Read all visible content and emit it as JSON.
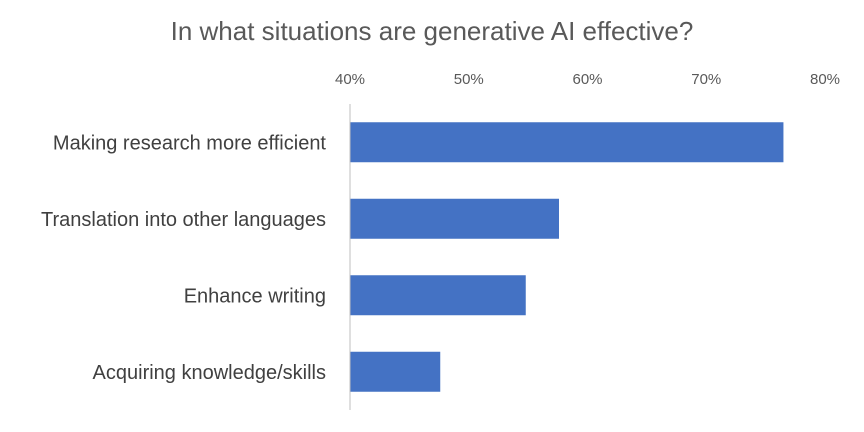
{
  "chart_data": {
    "type": "bar",
    "orientation": "horizontal",
    "title": "In what situations are generative AI effective?",
    "xlabel": "",
    "ylabel": "",
    "categories": [
      "Making research more efficient",
      "Translation into other languages",
      "Enhance writing",
      "Acquiring knowledge/skills"
    ],
    "values": [
      76.5,
      57.6,
      54.8,
      47.6
    ],
    "value_unit": "%",
    "xlim": [
      40,
      80
    ],
    "xticks": [
      40,
      50,
      60,
      70,
      80
    ],
    "xtick_labels": [
      "40%",
      "50%",
      "60%",
      "70%",
      "80%"
    ],
    "axis_position": "top",
    "grid": false,
    "legend": "none",
    "bar_color": "#4472C4"
  }
}
